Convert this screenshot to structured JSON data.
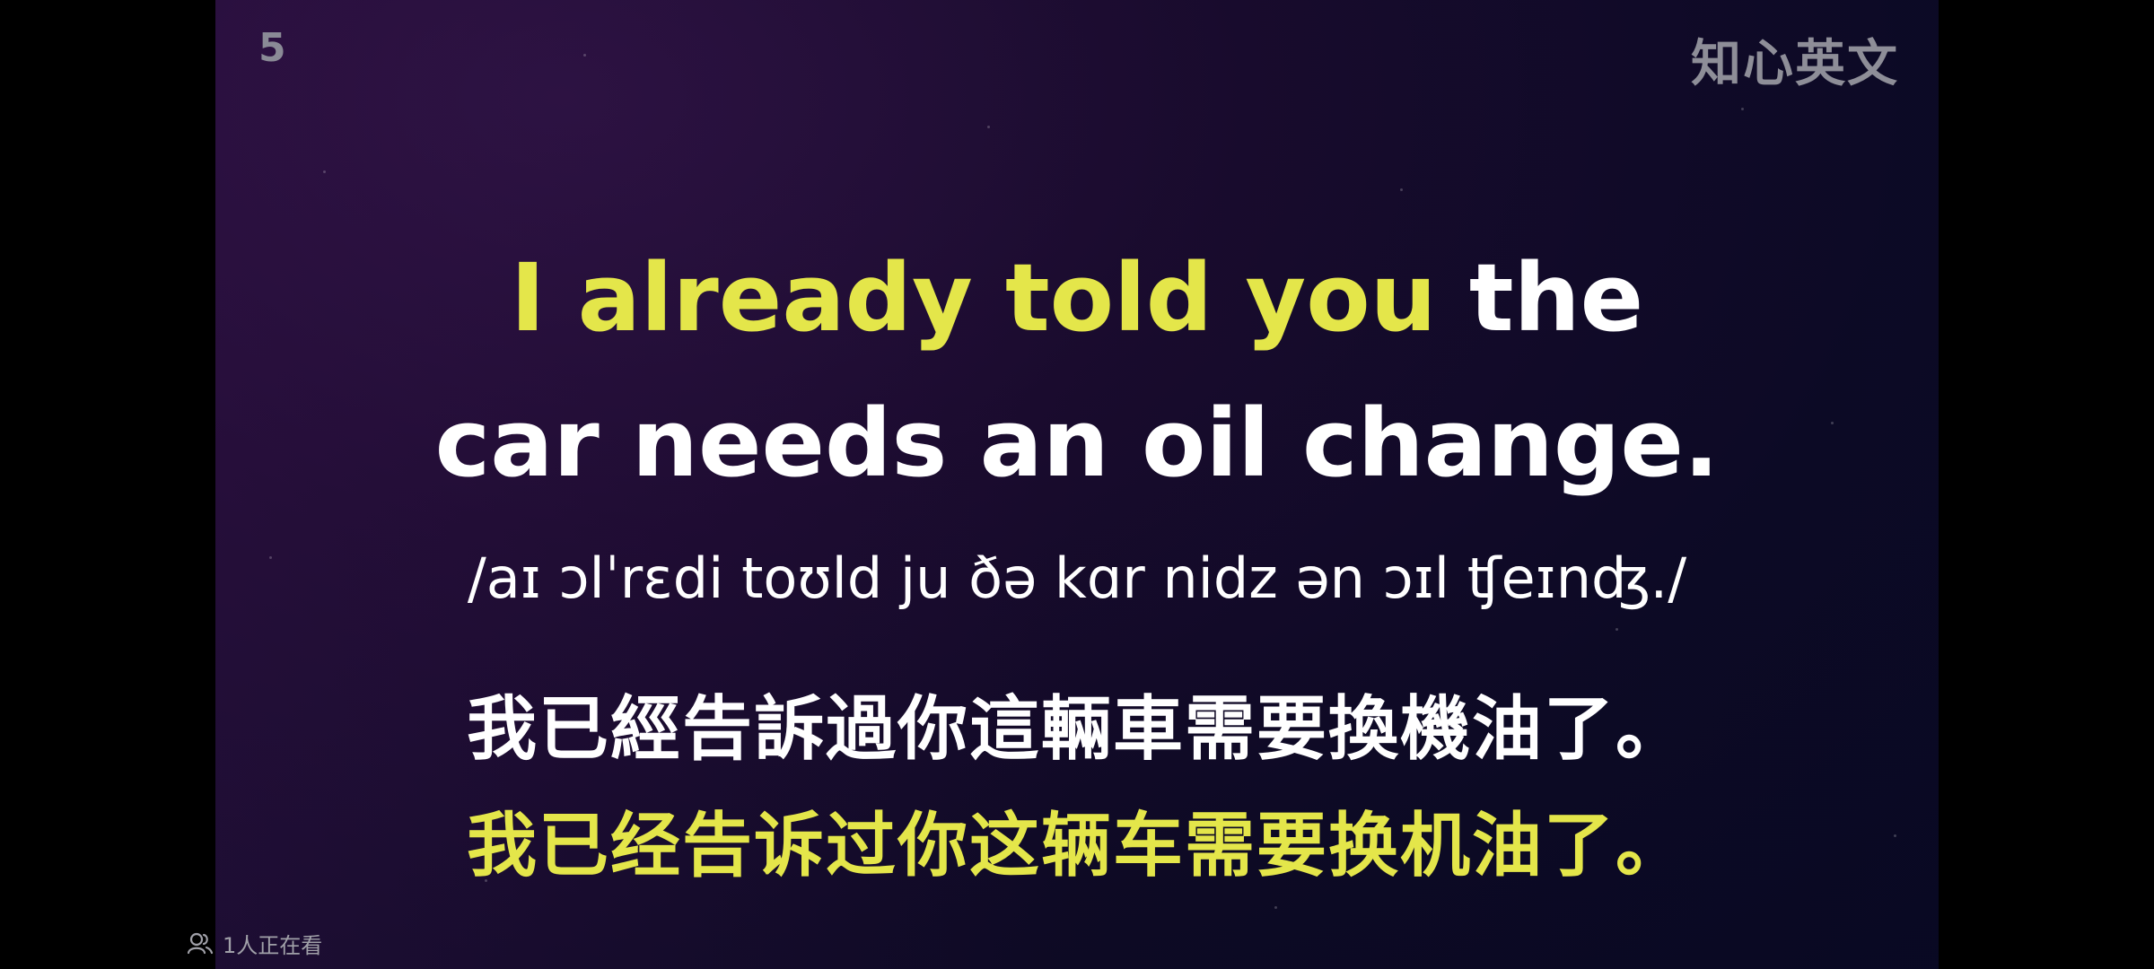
{
  "video": {
    "page_number": "5",
    "watermark": "知心英文",
    "english": {
      "line1_highlight": "I already told you",
      "line1_rest": "the",
      "line2": "car needs an oil change."
    },
    "ipa": "/aɪ ɔlˈrɛdi toʊld ju ðə kɑr nidz ən ɔɪl ʧeɪnʤ./",
    "chinese_traditional": "我已經告訴過你這輛車需要換機油了。",
    "chinese_simplified": "我已经告诉过你这辆车需要换机油了。"
  },
  "overlay": {
    "viewers_icon": "viewers-icon",
    "viewers_text": "1人正在看"
  },
  "colors": {
    "highlight_yellow": "#e4e64a",
    "text_white": "#ffffff",
    "watermark_gray": "#8e8e98"
  }
}
